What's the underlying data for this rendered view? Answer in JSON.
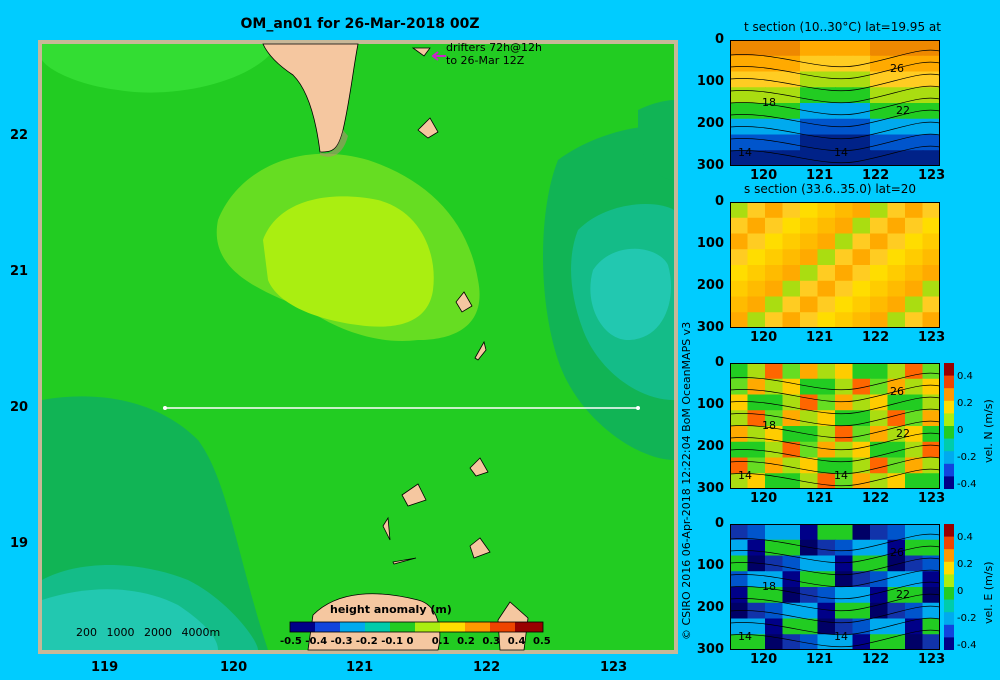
{
  "map": {
    "title": "OM_an01 for 26-Mar-2018 00Z",
    "drifters_line1": "drifters 72h@12h",
    "drifters_line2": "to 26-Mar 12Z",
    "x_ticks": [
      "119",
      "120",
      "121",
      "122",
      "123"
    ],
    "y_ticks": [
      "22",
      "21",
      "20",
      "19"
    ],
    "depth_legend": [
      "200",
      "1000",
      "2000",
      "4000m"
    ],
    "colorbar_title": "height anomaly (m)",
    "colorbar_ticks": [
      "-0.5",
      "-0.4",
      "-0.3",
      "-0.2",
      "-0.1",
      "0",
      "0.1",
      "0.2",
      "0.3",
      "0.4",
      "0.5"
    ],
    "section_line": {
      "lat": 20,
      "lon_start": 119.5,
      "lon_end": 123.2
    },
    "colors": {
      "background": "#00ccff",
      "land": "#f5c7a0",
      "frame": "#c8b898"
    }
  },
  "panels": [
    {
      "title": "t section (10..30°C) lat=19.95 at",
      "contour_labels": [
        "26",
        "18",
        "22",
        "14",
        "14"
      ],
      "colorbar": null
    },
    {
      "title": "s section (33.6..35.0) lat=20",
      "contour_labels": [],
      "colorbar": null
    },
    {
      "title": "",
      "contour_labels": [
        "26",
        "18",
        "22",
        "14",
        "14"
      ],
      "colorbar": {
        "label": "vel. N  (m/s)",
        "ticks": [
          "0.4",
          "0.2",
          "0",
          "-0.2",
          "-0.4"
        ]
      }
    },
    {
      "title": "",
      "contour_labels": [
        "26",
        "18",
        "22",
        "14",
        "14"
      ],
      "colorbar": {
        "label": "vel. E  (m/s)",
        "ticks": [
          "0.4",
          "0.2",
          "0",
          "-0.2",
          "-0.4"
        ]
      }
    }
  ],
  "panel_axes": {
    "x_ticks": [
      "120",
      "121",
      "122",
      "123"
    ],
    "y_ticks": [
      "0",
      "100",
      "200",
      "300"
    ]
  },
  "credit": "© CSIRO 2016   06-Apr-2018 12:22:04 BoM OceanMAPS v3"
}
